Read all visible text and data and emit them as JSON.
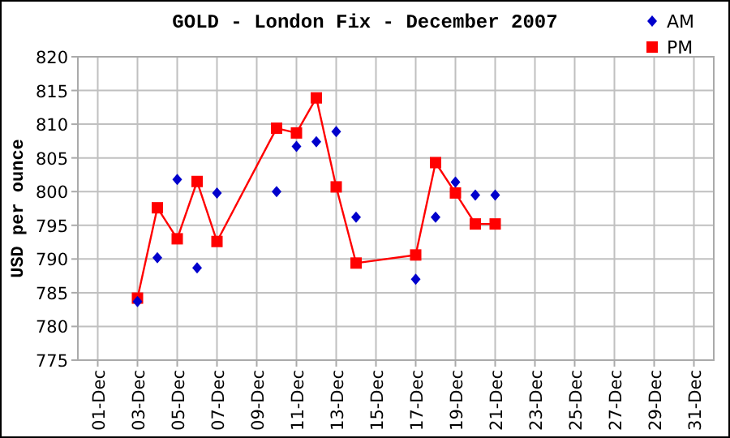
{
  "chart_data": {
    "type": "line",
    "title": "GOLD - London Fix - December 2007",
    "ylabel": "USD per ounce",
    "x": [
      "2007-12-03",
      "2007-12-04",
      "2007-12-05",
      "2007-12-06",
      "2007-12-07",
      "2007-12-10",
      "2007-12-11",
      "2007-12-12",
      "2007-12-13",
      "2007-12-14",
      "2007-12-17",
      "2007-12-18",
      "2007-12-19",
      "2007-12-20",
      "2007-12-21"
    ],
    "series": [
      {
        "name": "AM",
        "type": "scatter",
        "marker": "diamond",
        "color": "#0000cc",
        "values": [
          783.7,
          790.2,
          801.8,
          788.7,
          799.8,
          800.0,
          806.7,
          807.4,
          808.9,
          796.2,
          787.0,
          796.2,
          801.4,
          799.5,
          799.5
        ]
      },
      {
        "name": "PM",
        "marker": "square",
        "color": "#ff0000",
        "values": [
          784.2,
          797.6,
          793.0,
          801.5,
          792.6,
          809.4,
          808.7,
          813.9,
          800.7,
          789.4,
          790.6,
          804.3,
          799.8,
          795.2,
          795.2
        ]
      }
    ],
    "xlim": [
      "2007-11-30",
      "2008-01-01"
    ],
    "xticks": [
      {
        "value": "2007-12-01",
        "label": "01-Dec"
      },
      {
        "value": "2007-12-03",
        "label": "03-Dec"
      },
      {
        "value": "2007-12-05",
        "label": "05-Dec"
      },
      {
        "value": "2007-12-07",
        "label": "07-Dec"
      },
      {
        "value": "2007-12-09",
        "label": "09-Dec"
      },
      {
        "value": "2007-12-11",
        "label": "11-Dec"
      },
      {
        "value": "2007-12-13",
        "label": "13-Dec"
      },
      {
        "value": "2007-12-15",
        "label": "15-Dec"
      },
      {
        "value": "2007-12-17",
        "label": "17-Dec"
      },
      {
        "value": "2007-12-19",
        "label": "19-Dec"
      },
      {
        "value": "2007-12-21",
        "label": "21-Dec"
      },
      {
        "value": "2007-12-23",
        "label": "23-Dec"
      },
      {
        "value": "2007-12-25",
        "label": "25-Dec"
      },
      {
        "value": "2007-12-27",
        "label": "27-Dec"
      },
      {
        "value": "2007-12-29",
        "label": "29-Dec"
      },
      {
        "value": "2007-12-31",
        "label": "31-Dec"
      }
    ],
    "ylim": [
      775,
      820
    ],
    "yticks": [
      775,
      780,
      785,
      790,
      795,
      800,
      805,
      810,
      815,
      820
    ],
    "grid": true,
    "legend": "top right"
  }
}
